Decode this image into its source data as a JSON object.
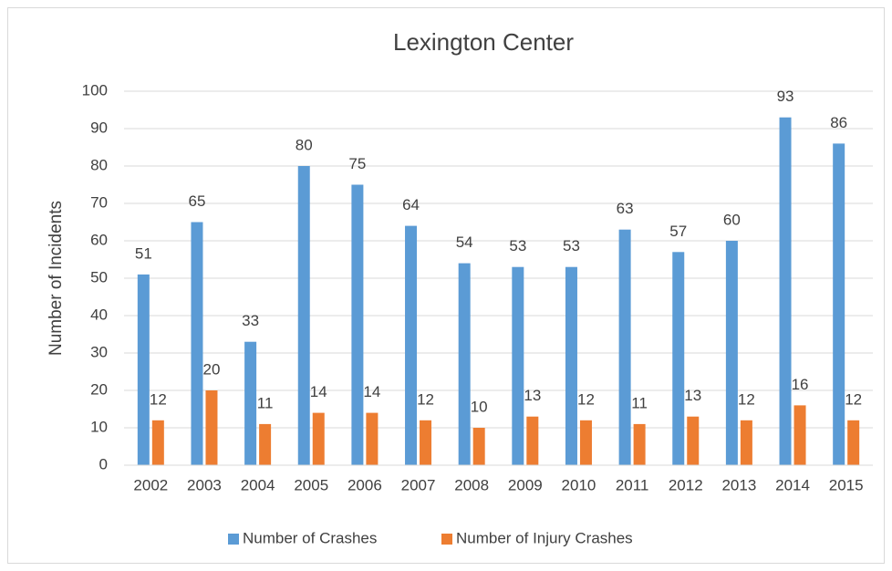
{
  "chart_data": {
    "type": "bar",
    "title": "Lexington Center",
    "y_label": "Number of Incidents",
    "categories": [
      "2002",
      "2003",
      "2004",
      "2005",
      "2006",
      "2007",
      "2008",
      "2009",
      "2010",
      "2011",
      "2012",
      "2013",
      "2014",
      "2015"
    ],
    "series": [
      {
        "name": "Number of Crashes",
        "color": "#5b9bd5",
        "values": [
          51,
          65,
          33,
          80,
          75,
          64,
          54,
          53,
          53,
          63,
          57,
          60,
          93,
          86
        ]
      },
      {
        "name": "Number of Injury Crashes",
        "color": "#ed7d31",
        "values": [
          12,
          20,
          11,
          14,
          14,
          12,
          10,
          13,
          12,
          11,
          13,
          12,
          16,
          12
        ]
      }
    ],
    "ylim": [
      0,
      100
    ],
    "yticks": [
      0,
      10,
      20,
      30,
      40,
      50,
      60,
      70,
      80,
      90,
      100
    ],
    "grid": true,
    "legend": "bottom"
  }
}
